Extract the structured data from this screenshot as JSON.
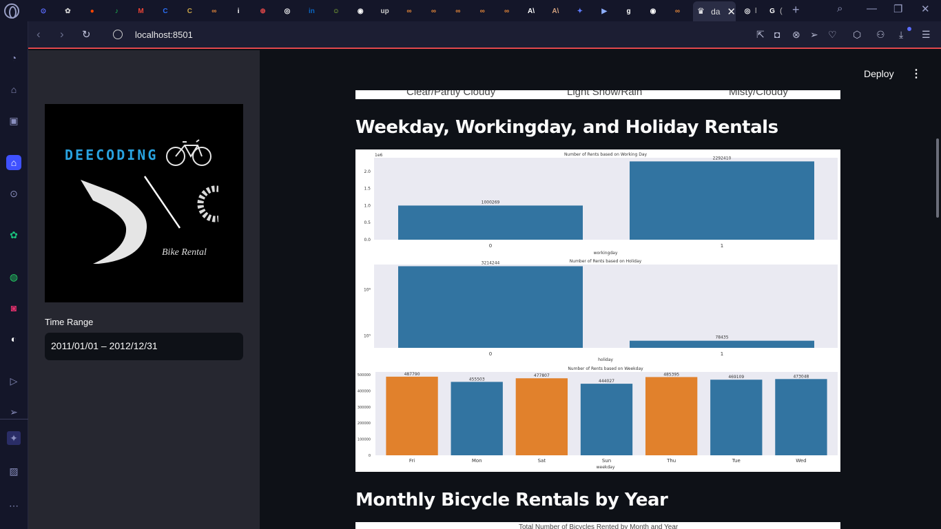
{
  "browser": {
    "active_tab_title": "da",
    "url": "localhost:8501",
    "tabs": [
      {
        "icon": "game-icon",
        "color": "#5b6cff",
        "glyph": "⊙"
      },
      {
        "icon": "chatgpt-icon",
        "color": "#cfcfcf",
        "glyph": "✿"
      },
      {
        "icon": "reddit-icon",
        "color": "#ff4500",
        "glyph": "●"
      },
      {
        "icon": "spotify-icon",
        "color": "#1db954",
        "glyph": "♪"
      },
      {
        "icon": "gmail-icon",
        "color": "#ea4335",
        "glyph": "M"
      },
      {
        "icon": "c-icon",
        "color": "#2b6ff5",
        "glyph": "C"
      },
      {
        "icon": "colorado-icon",
        "color": "#c9a449",
        "glyph": "C"
      },
      {
        "icon": "infinity-icon",
        "color": "#e8893a",
        "glyph": "∞"
      },
      {
        "icon": "info-icon",
        "color": "#ffffff",
        "glyph": "i"
      },
      {
        "icon": "coursera-icon",
        "color": "#e64848",
        "glyph": "⊕"
      },
      {
        "icon": "world-icon",
        "color": "#ffffff",
        "glyph": "◎"
      },
      {
        "icon": "linkedin-icon",
        "color": "#0a66c2",
        "glyph": "in"
      },
      {
        "icon": "smiley-icon",
        "color": "#9bd13b",
        "glyph": "☺"
      },
      {
        "icon": "github-icon",
        "color": "#ffffff",
        "glyph": "◉"
      },
      {
        "icon": "upwork-icon",
        "color": "#cccccc",
        "glyph": "up"
      },
      {
        "icon": "infinity-icon",
        "color": "#e8893a",
        "glyph": "∞"
      },
      {
        "icon": "infinity-icon",
        "color": "#e8893a",
        "glyph": "∞"
      },
      {
        "icon": "infinity-icon",
        "color": "#e8893a",
        "glyph": "∞"
      },
      {
        "icon": "infinity-icon",
        "color": "#e8893a",
        "glyph": "∞"
      },
      {
        "icon": "infinity-icon",
        "color": "#e8893a",
        "glyph": "∞"
      },
      {
        "icon": "anthropic-icon",
        "color": "#ffffff",
        "glyph": "A\\"
      },
      {
        "icon": "anthropic-icon",
        "color": "#d4a27f",
        "glyph": "A\\"
      },
      {
        "icon": "deploy-icon",
        "color": "#5f7cff",
        "glyph": "✦"
      },
      {
        "icon": "terminal-icon",
        "color": "#8fb0ff",
        "glyph": "▶"
      },
      {
        "icon": "g-icon",
        "color": "#ffffff",
        "glyph": "g"
      },
      {
        "icon": "github-icon",
        "color": "#ffffff",
        "glyph": "◉"
      },
      {
        "icon": "infinity-icon",
        "color": "#e8893a",
        "glyph": "∞"
      }
    ],
    "after_tabs": [
      {
        "icon": "world-icon",
        "glyph": "◎",
        "label": "l"
      },
      {
        "icon": "google-icon",
        "glyph": "G",
        "label": "("
      }
    ]
  },
  "sidebar": {
    "logo_title": "DEECODING",
    "logo_subtitle": "Bike Rental",
    "time_label": "Time Range",
    "time_value": "2011/01/01 – 2012/12/31"
  },
  "main": {
    "deploy_label": "Deploy",
    "top_image_labels": [
      "Clear/Partly Cloudy",
      "Light Snow/Rain",
      "Misty/Cloudy"
    ],
    "section1_title": "Weekday, Workingday, and Holiday Rentals",
    "section2_title": "Monthly Bicycle Rentals by Year",
    "bottom_image_caption": "Total Number of Bicycles Rented by Month and Year"
  },
  "chart_data": [
    {
      "type": "bar",
      "title": "Number of Rents based on Working Day",
      "categories": [
        "0",
        "1"
      ],
      "values": [
        1000269,
        2292410
      ],
      "xlabel": "workingday",
      "ylabel": "",
      "y_scale_note": "1e6",
      "yticks": [
        "0.0",
        "0.5",
        "1.0",
        "1.5",
        "2.0"
      ],
      "ylim": [
        0,
        2400000
      ],
      "color": "#3274a1"
    },
    {
      "type": "bar",
      "title": "Number of Rents based on Holiday",
      "categories": [
        "0",
        "1"
      ],
      "values": [
        3214244,
        78435
      ],
      "xlabel": "holiday",
      "ylabel": "",
      "y_scale": "log",
      "yticks": [
        "10⁵",
        "10⁶"
      ],
      "color": "#3274a1"
    },
    {
      "type": "bar",
      "title": "Number of Rents based on Weekday",
      "categories": [
        "Fri",
        "Mon",
        "Sat",
        "Sun",
        "Thu",
        "Tue",
        "Wed"
      ],
      "values": [
        487790,
        455503,
        477807,
        444027,
        485395,
        469109,
        473048
      ],
      "highlight": [
        true,
        false,
        true,
        false,
        true,
        false,
        false
      ],
      "xlabel": "weekday",
      "ylabel": "",
      "yticks": [
        "0",
        "100000",
        "200000",
        "300000",
        "400000",
        "500000"
      ],
      "ylim": [
        0,
        500000
      ],
      "colors": {
        "highlight": "#e1812c",
        "base": "#3274a1"
      }
    }
  ]
}
